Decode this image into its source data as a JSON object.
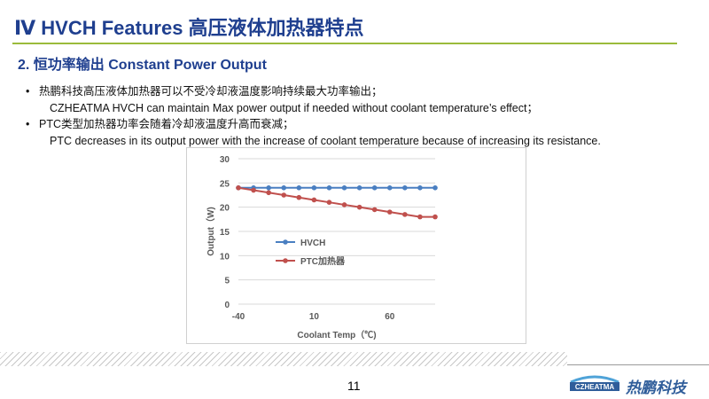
{
  "header": {
    "title": "Ⅳ HVCH Features 高压液体加热器特点",
    "subtitle": "2. 恒功率输出 Constant Power Output"
  },
  "bullets": [
    {
      "cn": "热鹏科技高压液体加热器可以不受冷却液温度影响持续最大功率输出；",
      "en": "CZHEATMA HVCH can maintain Max power output if needed without coolant temperature’s effect；"
    },
    {
      "cn": "PTC类型加热器功率会随着冷却液温度升高而衰减；",
      "en": "PTC decreases in its output power with the increase of coolant temperature because of increasing its resistance."
    }
  ],
  "chart_data": {
    "type": "line",
    "title": "",
    "xlabel": "Coolant Temp（℃)",
    "ylabel": "Output（W)",
    "xlim": [
      -40,
      90
    ],
    "ylim": [
      0,
      30
    ],
    "x_ticks": [
      -40,
      10,
      60
    ],
    "y_ticks": [
      0,
      5,
      10,
      15,
      20,
      25,
      30
    ],
    "grid": "horizontal",
    "legend_position": "center-left",
    "series": [
      {
        "name": "HVCH",
        "color": "#4a7fc1",
        "x": [
          -40,
          -30,
          -20,
          -10,
          0,
          10,
          20,
          30,
          40,
          50,
          60,
          70,
          80,
          90
        ],
        "y": [
          24,
          24,
          24,
          24,
          24,
          24,
          24,
          24,
          24,
          24,
          24,
          24,
          24,
          24
        ]
      },
      {
        "name": "PTC加热器",
        "color": "#c0504d",
        "x": [
          -40,
          -30,
          -20,
          -10,
          0,
          10,
          20,
          30,
          40,
          50,
          60,
          70,
          80,
          90
        ],
        "y": [
          24,
          23.5,
          23,
          22.5,
          22,
          21.5,
          21,
          20.5,
          20,
          19.5,
          19,
          18.5,
          18,
          18
        ]
      }
    ]
  },
  "footer": {
    "page_number": "11",
    "logo_text": "CZHEATMA",
    "brand_name": "热鹏科技"
  }
}
